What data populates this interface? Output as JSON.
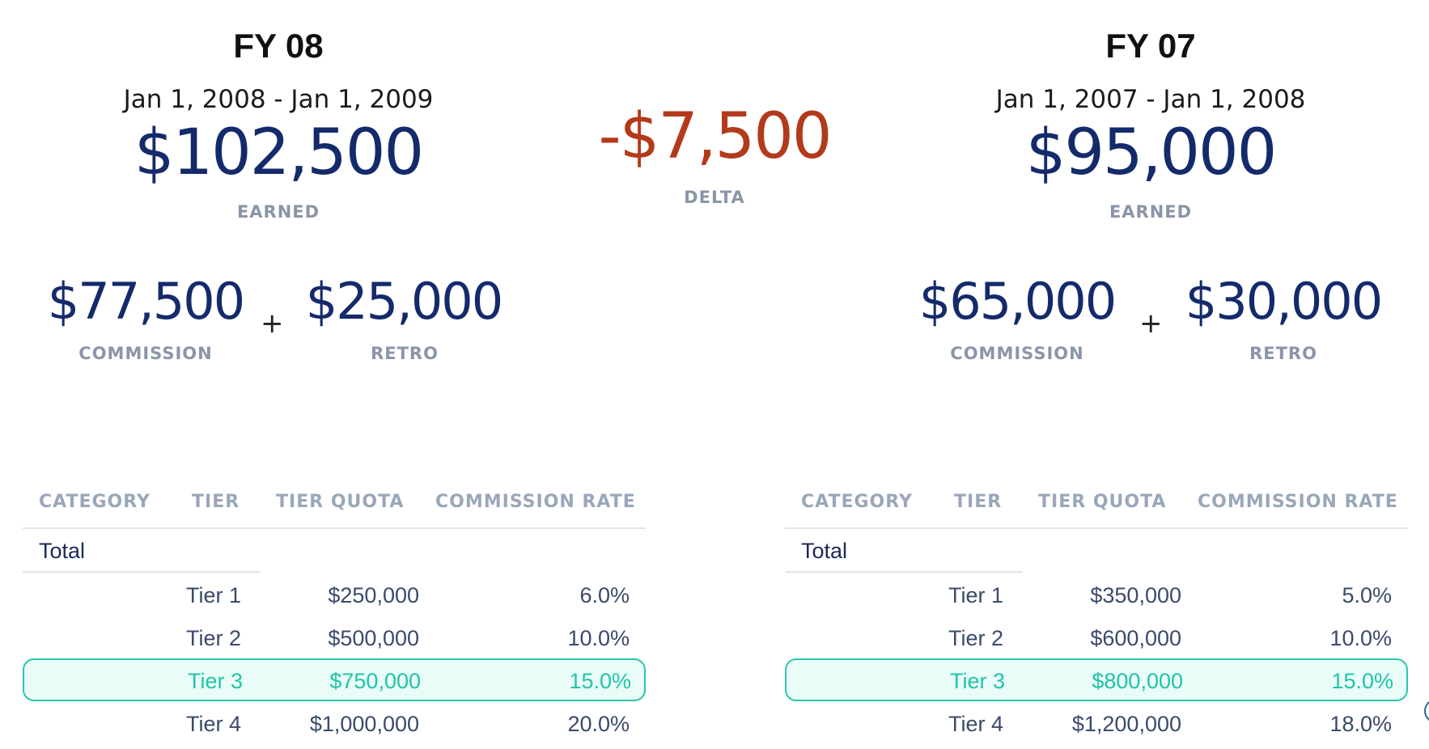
{
  "left": {
    "title": "FY 08",
    "date_range": "Jan 1, 2008 - Jan 1, 2009",
    "earned_value": "$102,500",
    "earned_label": "EARNED",
    "commission_value": "$77,500",
    "commission_label": "COMMISSION",
    "plus": "+",
    "retro_value": "$25,000",
    "retro_label": "RETRO",
    "table": {
      "headers": [
        "CATEGORY",
        "TIER",
        "TIER QUOTA",
        "COMMISSION RATE"
      ],
      "total_label": "Total",
      "rows": [
        {
          "tier": "Tier 1",
          "quota": "$250,000",
          "rate": "6.0%"
        },
        {
          "tier": "Tier 2",
          "quota": "$500,000",
          "rate": "10.0%"
        },
        {
          "tier": "Tier 3",
          "quota": "$750,000",
          "rate": "15.0%"
        },
        {
          "tier": "Tier 4",
          "quota": "$1,000,000",
          "rate": "20.0%"
        }
      ],
      "active_row": 3
    }
  },
  "delta": {
    "value": "-$7,500",
    "label": "DELTA"
  },
  "right": {
    "title": "FY 07",
    "date_range": "Jan 1, 2007 - Jan 1, 2008",
    "earned_value": "$95,000",
    "earned_label": "EARNED",
    "commission_value": "$65,000",
    "commission_label": "COMMISSION",
    "plus": "+",
    "retro_value": "$30,000",
    "retro_label": "RETRO",
    "table": {
      "headers": [
        "CATEGORY",
        "TIER",
        "TIER QUOTA",
        "COMMISSION RATE"
      ],
      "total_label": "Total",
      "rows": [
        {
          "tier": "Tier 1",
          "quota": "$350,000",
          "rate": "5.0%"
        },
        {
          "tier": "Tier 2",
          "quota": "$600,000",
          "rate": "10.0%"
        },
        {
          "tier": "Tier 3",
          "quota": "$800,000",
          "rate": "15.0%"
        },
        {
          "tier": "Tier 4",
          "quota": "$1,200,000",
          "rate": "18.0%"
        }
      ],
      "active_row": 3
    }
  },
  "colors": {
    "primary_value": "#142a6b",
    "delta_negative": "#b23a1b",
    "caption": "#8a95a8",
    "highlight_border": "#2cc6ad",
    "highlight_text": "#22c4a8"
  }
}
